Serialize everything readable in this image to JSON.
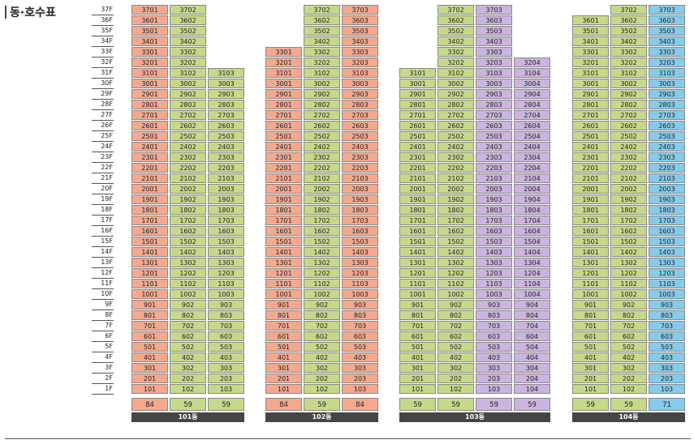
{
  "title": "동·호수표",
  "colors": {
    "salmon": "#f4a98f",
    "green": "#c6d98a",
    "purple": "#c9b5dd",
    "blue": "#86cbea"
  },
  "floors": [
    "37F",
    "36F",
    "35F",
    "34F",
    "33F",
    "32F",
    "31F",
    "30F",
    "29F",
    "28F",
    "27F",
    "26F",
    "25F",
    "24F",
    "23F",
    "22F",
    "21F",
    "20F",
    "19F",
    "18F",
    "17F",
    "16F",
    "15F",
    "14F",
    "13F",
    "12F",
    "11F",
    "10F",
    "9F",
    "8F",
    "7F",
    "6F",
    "5F",
    "4F",
    "3F",
    "2F",
    "1F"
  ],
  "buildings": [
    {
      "name": "101동",
      "lines": [
        {
          "suffix": "01",
          "color": "salmon",
          "top": 37,
          "area": "84"
        },
        {
          "suffix": "02",
          "color": "green",
          "top": 37,
          "area": "59"
        },
        {
          "suffix": "03",
          "color": "green",
          "top": 31,
          "area": "59"
        }
      ]
    },
    {
      "name": "102동",
      "lines": [
        {
          "suffix": "01",
          "color": "salmon",
          "top": 33,
          "area": "84"
        },
        {
          "suffix": "02",
          "color": "green",
          "top": 37,
          "area": "59"
        },
        {
          "suffix": "03",
          "color": "salmon",
          "top": 37,
          "area": "84"
        }
      ]
    },
    {
      "name": "103동",
      "lines": [
        {
          "suffix": "01",
          "color": "green",
          "top": 31,
          "area": "59"
        },
        {
          "suffix": "02",
          "color": "green",
          "top": 37,
          "area": "59"
        },
        {
          "suffix": "03",
          "color": "purple",
          "top": 37,
          "area": "59"
        },
        {
          "suffix": "04",
          "color": "purple",
          "top": 32,
          "area": "59"
        }
      ]
    },
    {
      "name": "104동",
      "lines": [
        {
          "suffix": "01",
          "color": "green",
          "top": 36,
          "area": "59"
        },
        {
          "suffix": "02",
          "color": "green",
          "top": 37,
          "area": "59"
        },
        {
          "suffix": "03",
          "color": "blue",
          "top": 37,
          "area": "71"
        }
      ]
    }
  ]
}
